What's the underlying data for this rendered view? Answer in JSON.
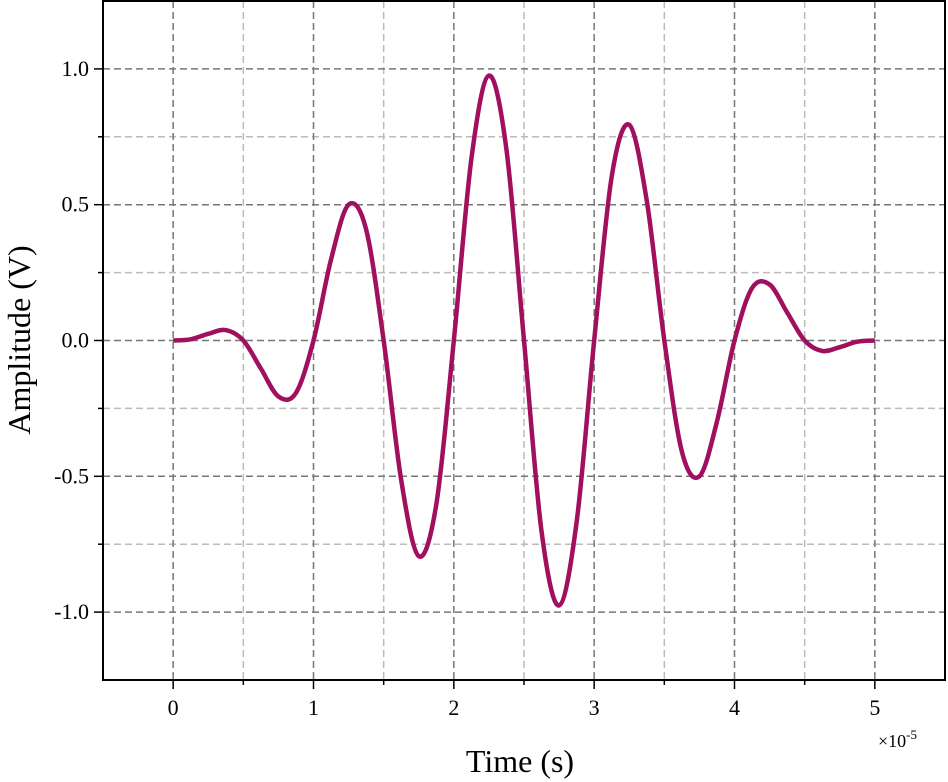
{
  "chart_data": {
    "type": "line",
    "x_label": "Time (s)",
    "y_label": "Amplitude (V)",
    "x_multiplier": "×10",
    "x_multiplier_exponent": "-5",
    "xlim": [
      -0.5,
      5.5
    ],
    "ylim": [
      -1.25,
      1.25
    ],
    "xticks": [
      0,
      1,
      2,
      3,
      4,
      5
    ],
    "yticks": [
      {
        "value": -1.0,
        "label": "-1.0"
      },
      {
        "value": -0.5,
        "label": "-0.5"
      },
      {
        "value": 0,
        "label": "0.0"
      },
      {
        "value": 0.5,
        "label": "0.5"
      },
      {
        "value": 1.0,
        "label": "1.0"
      }
    ],
    "x_minor_ticks": [
      0.5,
      1.5,
      2.5,
      3.5,
      4.5
    ],
    "y_minor_ticks": [
      -0.75,
      -0.25,
      0.25,
      0.75
    ],
    "grid": true,
    "x": [
      0,
      0.125,
      0.25,
      0.375,
      0.5,
      0.625,
      0.75,
      0.875,
      1,
      1.125,
      1.25,
      1.375,
      1.5,
      1.625,
      1.75,
      1.875,
      2,
      2.125,
      2.25,
      2.375,
      2.5,
      2.625,
      2.75,
      2.875,
      3,
      3.125,
      3.25,
      3.375,
      3.5,
      3.625,
      3.75,
      3.875,
      4,
      4.125,
      4.25,
      4.375,
      4.5,
      4.625,
      4.75,
      4.875,
      5
    ],
    "series": [
      {
        "color": "#a1105f",
        "values": [
          0,
          0.0044,
          0.0245,
          0.0385,
          0,
          -0.1035,
          -0.2061,
          -0.193,
          0,
          0.2983,
          0.5,
          0.4088,
          0,
          -0.5141,
          -0.7939,
          -0.6036,
          0,
          0.6686,
          0.9755,
          0.7027,
          0,
          -0.7027,
          -0.9755,
          -0.6686,
          0,
          0.6036,
          0.7939,
          0.5141,
          0,
          -0.4088,
          -0.5,
          -0.2983,
          0,
          0.193,
          0.2061,
          0.1035,
          0,
          -0.0385,
          -0.0245,
          -0.0044,
          0
        ]
      }
    ]
  }
}
